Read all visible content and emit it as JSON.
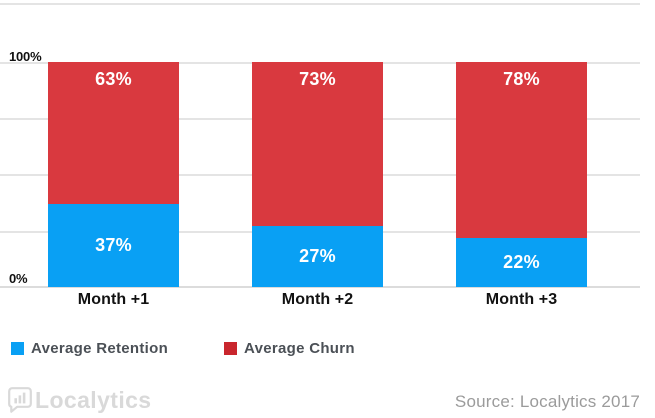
{
  "chart_data": {
    "type": "bar",
    "subtype": "stacked-100-percent",
    "categories": [
      "Month +1",
      "Month +2",
      "Month +3"
    ],
    "series": [
      {
        "name": "Average Retention",
        "color": "#09a0f4",
        "values": [
          37,
          27,
          22
        ]
      },
      {
        "name": "Average Churn",
        "color": "#d9393f",
        "values": [
          63,
          73,
          78
        ]
      }
    ],
    "value_suffix": "%",
    "ylim": [
      0,
      100
    ],
    "y_axis": {
      "top_label": "100%",
      "bottom_label": "0%"
    },
    "grid": true,
    "gridline_interval_percent": 25,
    "legend_position": "bottom-left"
  },
  "legend": {
    "items": [
      {
        "label": "Average Retention",
        "color": "#09a0f4"
      },
      {
        "label": "Average Churn",
        "color": "#c9262d"
      }
    ]
  },
  "footer": {
    "logo_text": "Localytics",
    "logo_icon": "bar-chart-speech-bubble",
    "source_text": "Source: Localytics 2017"
  }
}
